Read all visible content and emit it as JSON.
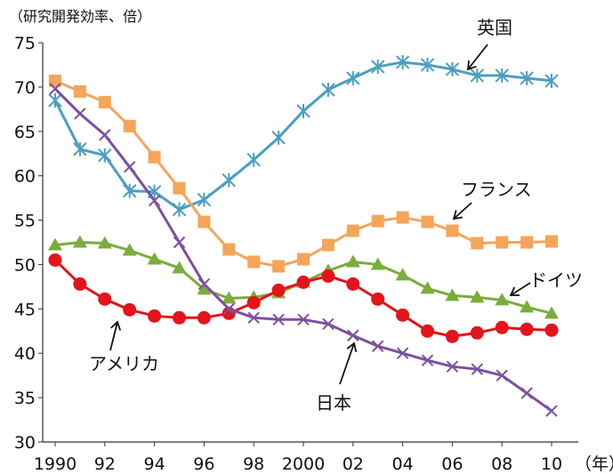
{
  "chart_data": {
    "type": "line",
    "ylabel": "（研究開発効率、倍）",
    "xunit": "（年）",
    "ylim": [
      30,
      75
    ],
    "yticks": [
      "30",
      "35",
      "40",
      "45",
      "50",
      "55",
      "60",
      "65",
      "70",
      "75"
    ],
    "x": [
      1990,
      1991,
      1992,
      1993,
      1994,
      1995,
      1996,
      1997,
      1998,
      1999,
      2000,
      2001,
      2002,
      2003,
      2004,
      2005,
      2006,
      2007,
      2008,
      2009,
      2010
    ],
    "xtick_labels": [
      "1990",
      "92",
      "94",
      "96",
      "98",
      "2000",
      "02",
      "04",
      "06",
      "08",
      "10"
    ],
    "grid": false,
    "legend": "direct labels with arrows",
    "series": [
      {
        "name": "英国",
        "color": "#4a9fc0",
        "marker": "star",
        "values": [
          68.5,
          63.0,
          62.3,
          58.3,
          58.2,
          56.2,
          57.3,
          59.5,
          61.8,
          64.3,
          67.3,
          69.7,
          71.0,
          72.3,
          72.8,
          72.5,
          72.0,
          71.3,
          71.3,
          71.0,
          70.7
        ]
      },
      {
        "name": "フランス",
        "color": "#f5a55a",
        "marker": "square",
        "values": [
          70.7,
          69.5,
          68.3,
          65.6,
          62.1,
          58.6,
          54.8,
          51.7,
          50.3,
          49.8,
          50.6,
          52.2,
          53.8,
          54.9,
          55.3,
          54.8,
          53.8,
          52.4,
          52.5,
          52.5,
          52.6
        ]
      },
      {
        "name": "ドイツ",
        "color": "#79ad3c",
        "marker": "triangle",
        "values": [
          52.2,
          52.5,
          52.4,
          51.6,
          50.6,
          49.6,
          47.2,
          46.2,
          46.3,
          46.8,
          48.0,
          49.3,
          50.3,
          50.0,
          48.8,
          47.3,
          46.5,
          46.3,
          46.0,
          45.2,
          44.5
        ]
      },
      {
        "name": "アメリカ",
        "color": "#e3141b",
        "marker": "circle",
        "values": [
          50.5,
          47.8,
          46.1,
          44.9,
          44.2,
          44.0,
          44.0,
          44.5,
          45.7,
          47.1,
          48.0,
          48.7,
          47.8,
          46.1,
          44.3,
          42.5,
          41.9,
          42.3,
          42.9,
          42.7,
          42.6
        ]
      },
      {
        "name": "日本",
        "color": "#7d4fa0",
        "marker": "x",
        "values": [
          69.8,
          67.0,
          64.6,
          61.0,
          57.2,
          52.5,
          47.8,
          45.0,
          44.0,
          43.8,
          43.8,
          43.3,
          42.0,
          40.8,
          40.0,
          39.2,
          38.5,
          38.2,
          37.5,
          35.5,
          33.5
        ]
      }
    ]
  }
}
